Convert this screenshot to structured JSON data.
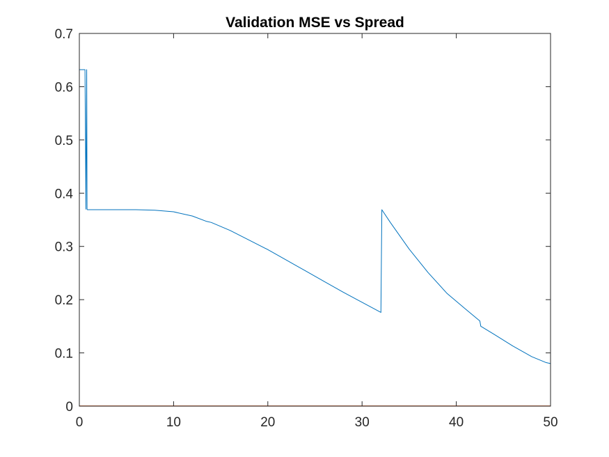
{
  "chart_data": {
    "type": "line",
    "title": "Validation MSE vs Spread",
    "xlabel": "",
    "ylabel": "",
    "xlim": [
      0,
      50
    ],
    "ylim": [
      0,
      0.7
    ],
    "x_ticks": [
      0,
      10,
      20,
      30,
      40,
      50
    ],
    "y_ticks": [
      0,
      0.1,
      0.2,
      0.3,
      0.4,
      0.5,
      0.6,
      0.7
    ],
    "x_tick_labels": [
      "0",
      "10",
      "20",
      "30",
      "40",
      "50"
    ],
    "y_tick_labels": [
      "0",
      "0.1",
      "0.2",
      "0.3",
      "0.4",
      "0.5",
      "0.6",
      "0.7"
    ],
    "grid": false,
    "axis_color": "#262626",
    "series": [
      {
        "color": "#0072BD",
        "x": [
          0,
          0.6,
          0.65,
          0.7,
          0.74,
          0.78,
          0.82,
          0.85,
          0.9,
          1,
          3,
          6,
          8,
          10,
          12,
          13.5,
          14,
          16,
          18,
          20,
          22,
          24,
          26,
          28,
          30,
          32,
          32.1,
          33,
          35,
          37,
          39,
          41,
          42.5,
          42.6,
          44,
          46,
          48,
          49.5,
          50
        ],
        "y": [
          0.632,
          0.632,
          0.5,
          0.37,
          0.5,
          0.632,
          0.37,
          0.369,
          0.369,
          0.369,
          0.369,
          0.369,
          0.368,
          0.365,
          0.357,
          0.347,
          0.345,
          0.33,
          0.312,
          0.294,
          0.274,
          0.254,
          0.234,
          0.214,
          0.195,
          0.176,
          0.369,
          0.345,
          0.295,
          0.251,
          0.212,
          0.182,
          0.16,
          0.15,
          0.135,
          0.113,
          0.093,
          0.082,
          0.08
        ]
      },
      {
        "color": "#D95319",
        "x": [
          0,
          50
        ],
        "y": [
          0.0005,
          0.0005
        ]
      },
      {
        "color": "#EDB120",
        "x": [
          0,
          50
        ],
        "y": [
          0,
          0
        ]
      }
    ]
  }
}
